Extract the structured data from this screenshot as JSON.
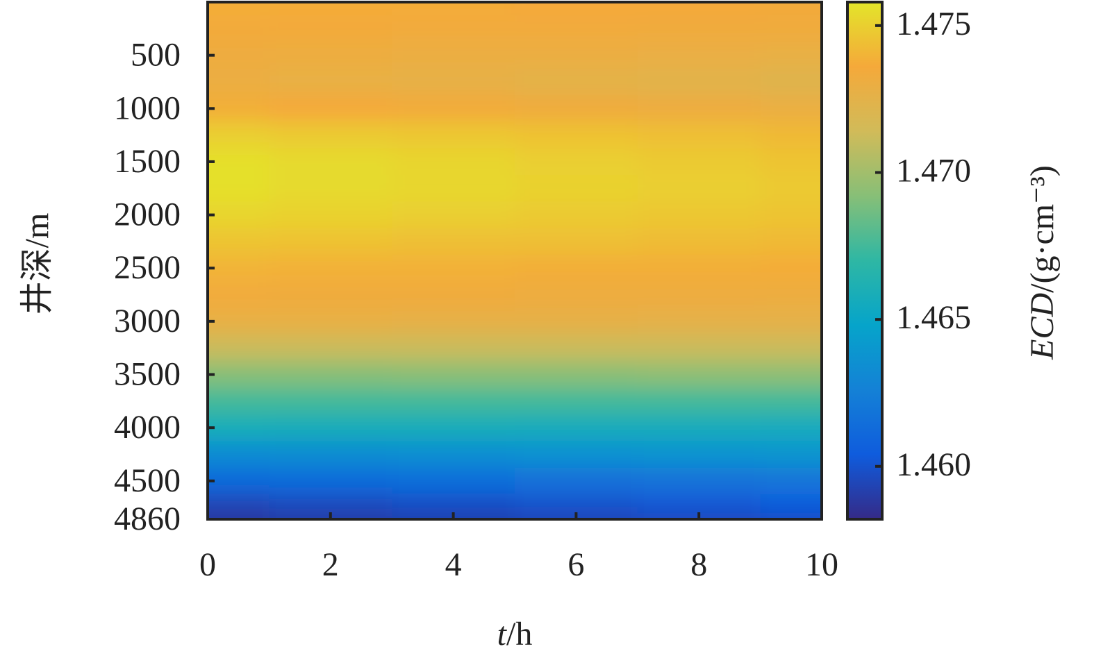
{
  "chart_data": {
    "type": "heatmap",
    "xlabel": "t/h",
    "ylabel": "井深/m",
    "colorbar_label": "ECD/(g·cm⁻³)",
    "x": [
      0,
      2,
      4,
      6,
      8,
      10
    ],
    "y": [
      0,
      250,
      500,
      750,
      1000,
      1250,
      1500,
      1750,
      2000,
      2250,
      2500,
      2750,
      3000,
      3250,
      3500,
      3750,
      4000,
      4250,
      4500,
      4750,
      4860
    ],
    "z": [
      [
        1.4738,
        1.4737,
        1.4737,
        1.4736,
        1.4736,
        1.4735
      ],
      [
        1.4735,
        1.4735,
        1.4734,
        1.4734,
        1.4733,
        1.4733
      ],
      [
        1.4732,
        1.4731,
        1.473,
        1.473,
        1.4729,
        1.4728
      ],
      [
        1.473,
        1.4728,
        1.4727,
        1.4725,
        1.4724,
        1.4722
      ],
      [
        1.4738,
        1.4736,
        1.4735,
        1.4733,
        1.4732,
        1.473
      ],
      [
        1.475,
        1.4748,
        1.4747,
        1.4745,
        1.4744,
        1.4742
      ],
      [
        1.4756,
        1.4754,
        1.4752,
        1.475,
        1.4748,
        1.4746
      ],
      [
        1.4756,
        1.4754,
        1.4753,
        1.4751,
        1.475,
        1.4748
      ],
      [
        1.4752,
        1.4751,
        1.475,
        1.4748,
        1.4747,
        1.4746
      ],
      [
        1.4746,
        1.4745,
        1.4744,
        1.4744,
        1.4743,
        1.4742
      ],
      [
        1.474,
        1.4739,
        1.4739,
        1.4738,
        1.4738,
        1.4737
      ],
      [
        1.4734,
        1.4733,
        1.4733,
        1.4732,
        1.4732,
        1.4731
      ],
      [
        1.4728,
        1.4728,
        1.4727,
        1.4727,
        1.4726,
        1.4726
      ],
      [
        1.4712,
        1.4712,
        1.4712,
        1.4712,
        1.4712,
        1.4712
      ],
      [
        1.4692,
        1.4692,
        1.4693,
        1.4693,
        1.4694,
        1.4694
      ],
      [
        1.4675,
        1.4675,
        1.4675,
        1.4675,
        1.4675,
        1.4675
      ],
      [
        1.4658,
        1.4657,
        1.4657,
        1.4656,
        1.4656,
        1.4655
      ],
      [
        1.4632,
        1.4633,
        1.4634,
        1.4636,
        1.4637,
        1.4638
      ],
      [
        1.4612,
        1.4613,
        1.4614,
        1.4616,
        1.4617,
        1.4618
      ],
      [
        1.4594,
        1.4596,
        1.4598,
        1.46,
        1.4602,
        1.4604
      ],
      [
        1.4588,
        1.459,
        1.4592,
        1.4594,
        1.4596,
        1.4598
      ]
    ],
    "xlim": [
      0,
      10
    ],
    "xticks": [
      0,
      2,
      4,
      6,
      8,
      10
    ],
    "ylim": [
      0,
      4860
    ],
    "y_inverted": true,
    "yticks": [
      500,
      1000,
      1500,
      2000,
      2500,
      3000,
      3500,
      4000,
      4500,
      4860
    ],
    "clim": [
      1.4582,
      1.4758
    ],
    "cticks": [
      {
        "value": 1.46,
        "label": "1.460"
      },
      1.465,
      {
        "value": 1.47,
        "label": "1.470"
      },
      1.475
    ],
    "colormap": [
      "#352a87",
      "#0f5cdd",
      "#1481d6",
      "#06a4ca",
      "#2eb7a4",
      "#87bf77",
      "#d1bb59",
      "#f5a93a",
      "#e3e52a"
    ]
  }
}
